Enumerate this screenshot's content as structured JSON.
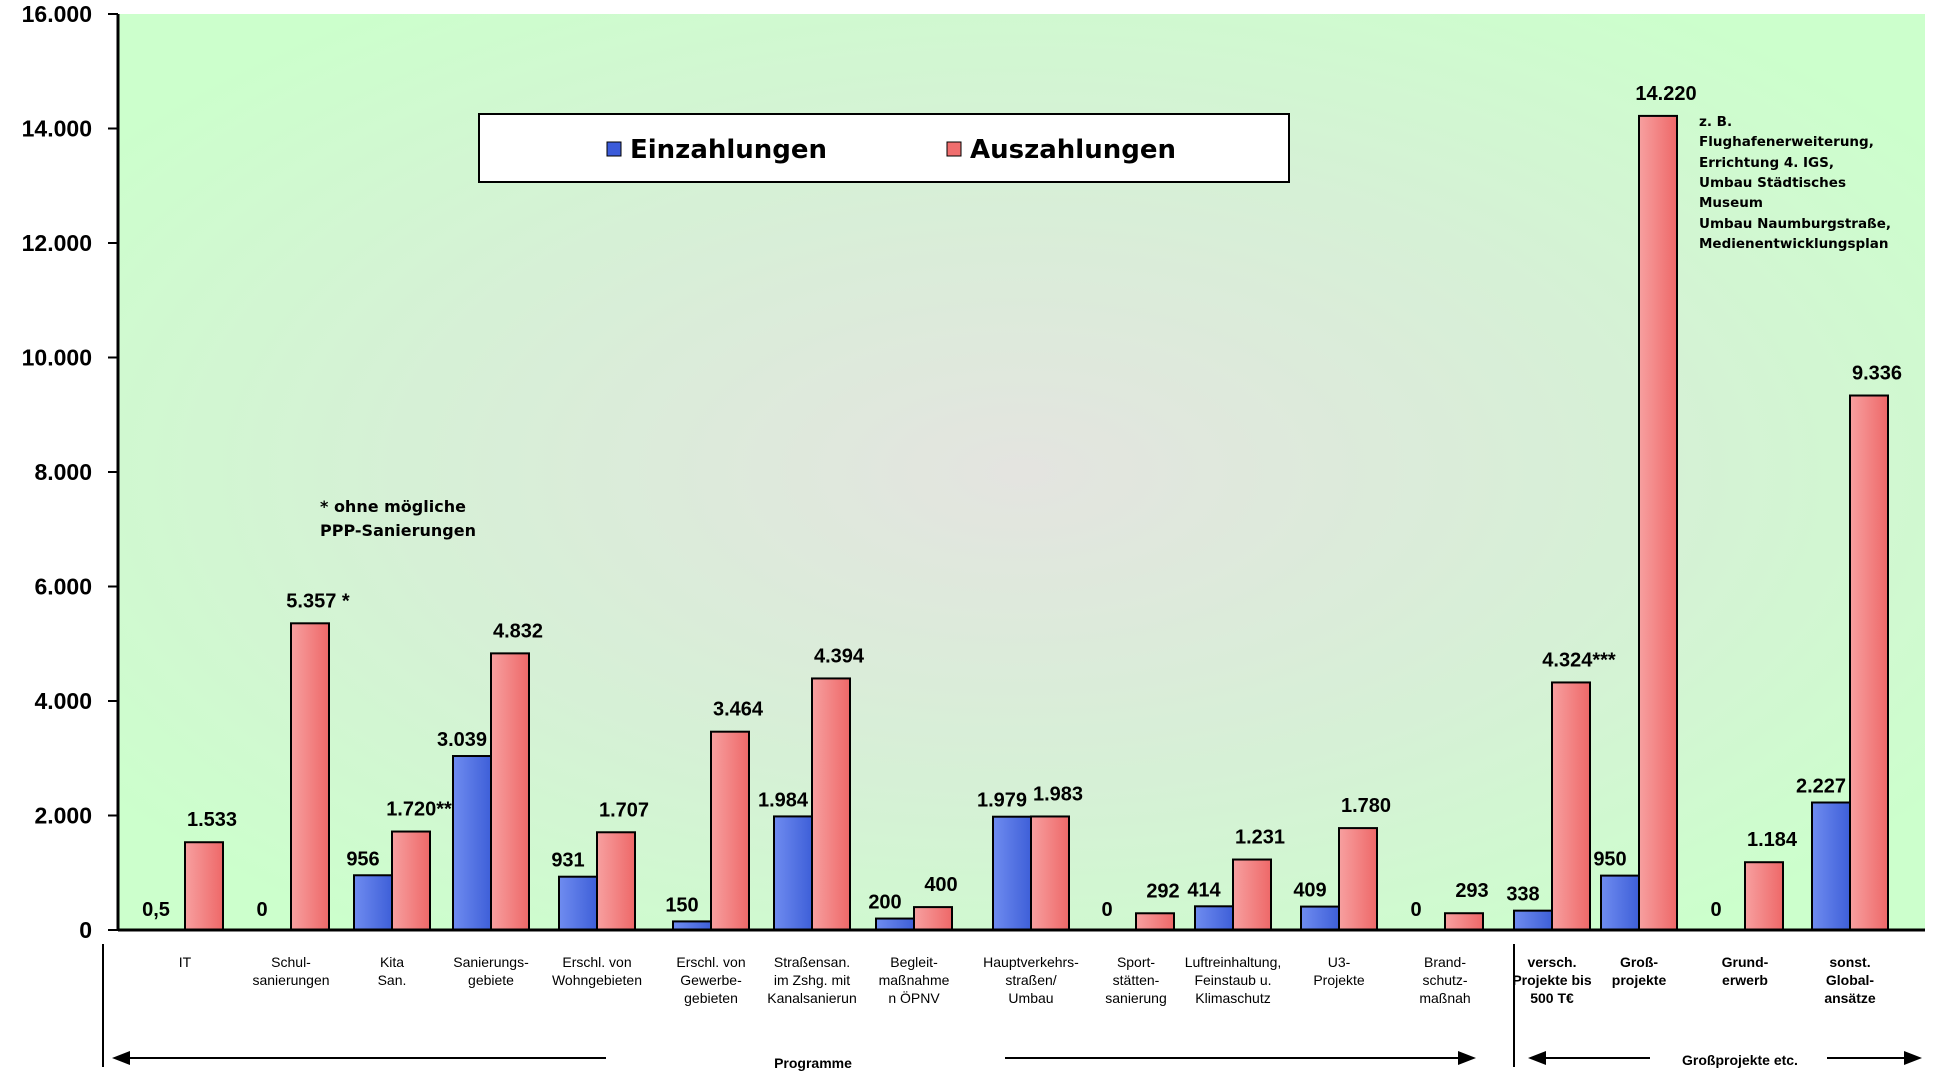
{
  "chart_data": {
    "type": "bar",
    "ylim": [
      0,
      16000
    ],
    "y_ticks": [
      "0",
      "2.000",
      "4.000",
      "6.000",
      "8.000",
      "10.000",
      "12.000",
      "14.000",
      "16.000"
    ],
    "categories": [
      [
        "IT"
      ],
      [
        "Schul-",
        "sanierungen"
      ],
      [
        "Kita",
        "San."
      ],
      [
        "Sanierungs-",
        "gebiete"
      ],
      [
        "Erschl. von",
        "Wohngebieten"
      ],
      [
        "Erschl. von",
        "Gewerbe-",
        "gebieten"
      ],
      [
        "Straßensan.",
        "im Zshg. mit",
        "Kanalsanierun"
      ],
      [
        "Begleit-",
        "maßnahme",
        "n ÖPNV"
      ],
      [
        "Hauptverkehrs-",
        "straßen/",
        "Umbau"
      ],
      [
        "Sport-",
        "stätten-",
        "sanierung"
      ],
      [
        "Luftreinhaltung,",
        "Feinstaub u.",
        "Klimaschutz"
      ],
      [
        "U3-",
        "Projekte"
      ],
      [
        "Brand-",
        "schutz-",
        "maßnah"
      ],
      [
        "versch.",
        "Projekte bis",
        "500 T€"
      ],
      [
        "Groß-",
        "projekte"
      ],
      [
        "Grund-",
        "erwerb"
      ],
      [
        "sonst.",
        "Global-",
        "ansätze"
      ]
    ],
    "series": [
      {
        "name": "Einzahlungen",
        "color": "#3b5bd9",
        "values": [
          0.5,
          0,
          956,
          3039,
          931,
          150,
          1984,
          200,
          1979,
          0,
          414,
          409,
          0,
          338,
          950,
          0,
          2227
        ],
        "labels": [
          "0,5",
          "0",
          "956",
          "3.039",
          "931",
          "150",
          "1.984",
          "200",
          "1.979",
          "0",
          "414",
          "409",
          "0",
          "338",
          "950",
          "0",
          "2.227"
        ]
      },
      {
        "name": "Auszahlungen",
        "color": "#f06e6e",
        "values": [
          1533,
          5357,
          1720,
          4832,
          1707,
          3464,
          4394,
          400,
          1983,
          292,
          1231,
          1780,
          293,
          4324,
          14220,
          1184,
          9336
        ],
        "labels": [
          "1.533",
          "5.357 *",
          "1.720**",
          "4.832",
          "1.707",
          "3.464",
          "4.394",
          "400",
          "1.983",
          "292",
          "1.231",
          "1.780",
          "293",
          "4.324***",
          "14.220",
          "1.184",
          "9.336"
        ]
      }
    ],
    "legend_position": "top-center",
    "note": [
      "* ohne mögliche",
      "PPP-Sanierungen"
    ],
    "annotation": [
      "z. B.",
      "Flughafenerweiterung,",
      "Errichtung 4. IGS,",
      "Umbau Städtisches",
      "Museum",
      "Umbau Naumburgstraße,",
      "Medienentwicklungsplan"
    ],
    "groups": [
      "Programme",
      "Großprojekte etc."
    ]
  }
}
